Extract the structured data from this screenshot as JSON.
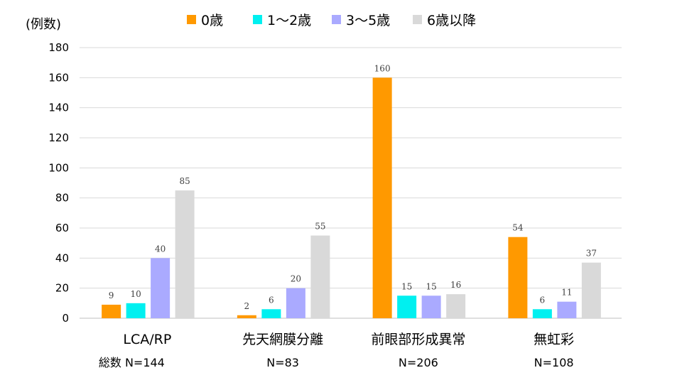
{
  "chart_data": {
    "type": "bar",
    "title": "",
    "ylabel": "(例数)",
    "xlabel": "",
    "ylim": [
      0,
      180
    ],
    "yticks": [
      0,
      20,
      40,
      60,
      80,
      100,
      120,
      140,
      160,
      180
    ],
    "grid": true,
    "legend_position": "top",
    "categories": [
      "LCA/RP",
      "先天網膜分離",
      "前眼部形成異常",
      "無虹彩"
    ],
    "totals": [
      "総数 N=144",
      "N=83",
      "N=206",
      "N=108"
    ],
    "series": [
      {
        "name": "0歳",
        "color": "#FF9900",
        "values": [
          9,
          2,
          160,
          54
        ]
      },
      {
        "name": "1〜2歳",
        "color": "#00F0F0",
        "values": [
          10,
          6,
          15,
          6
        ]
      },
      {
        "name": "3〜5歳",
        "color": "#AAAAFF",
        "values": [
          40,
          20,
          15,
          11
        ]
      },
      {
        "name": "6歳以降",
        "color": "#D9D9D9",
        "values": [
          85,
          55,
          16,
          37
        ]
      }
    ]
  }
}
